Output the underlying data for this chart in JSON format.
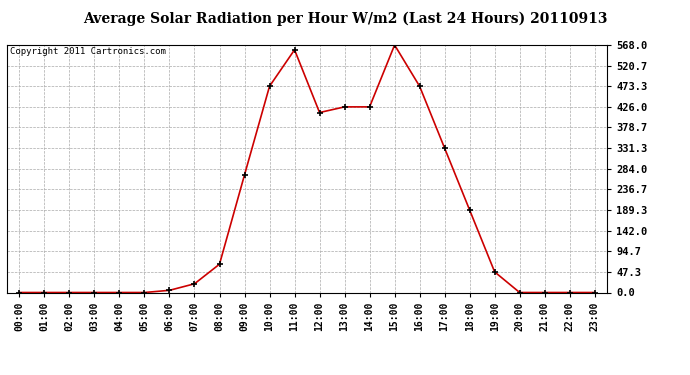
{
  "title": "Average Solar Radiation per Hour W/m2 (Last 24 Hours) 20110913",
  "copyright": "Copyright 2011 Cartronics.com",
  "x_labels": [
    "00:00",
    "01:00",
    "02:00",
    "03:00",
    "04:00",
    "05:00",
    "06:00",
    "07:00",
    "08:00",
    "09:00",
    "10:00",
    "11:00",
    "12:00",
    "13:00",
    "14:00",
    "15:00",
    "16:00",
    "17:00",
    "18:00",
    "19:00",
    "20:00",
    "21:00",
    "22:00",
    "23:00"
  ],
  "y_values": [
    0.0,
    0.0,
    0.0,
    0.0,
    0.0,
    0.0,
    5.0,
    20.0,
    65.0,
    270.0,
    473.3,
    557.0,
    413.0,
    426.0,
    426.0,
    568.0,
    473.3,
    331.3,
    189.3,
    47.3,
    0.0,
    0.0,
    0.0,
    0.0
  ],
  "y_ticks": [
    0.0,
    47.3,
    94.7,
    142.0,
    189.3,
    236.7,
    284.0,
    331.3,
    378.7,
    426.0,
    473.3,
    520.7,
    568.0
  ],
  "y_min": 0.0,
  "y_max": 568.0,
  "line_color": "#cc0000",
  "marker_color": "#000000",
  "bg_color": "#ffffff",
  "grid_color": "#aaaaaa",
  "title_fontsize": 10,
  "copyright_fontsize": 6.5,
  "tick_fontsize": 7,
  "ytick_fontsize": 7.5
}
